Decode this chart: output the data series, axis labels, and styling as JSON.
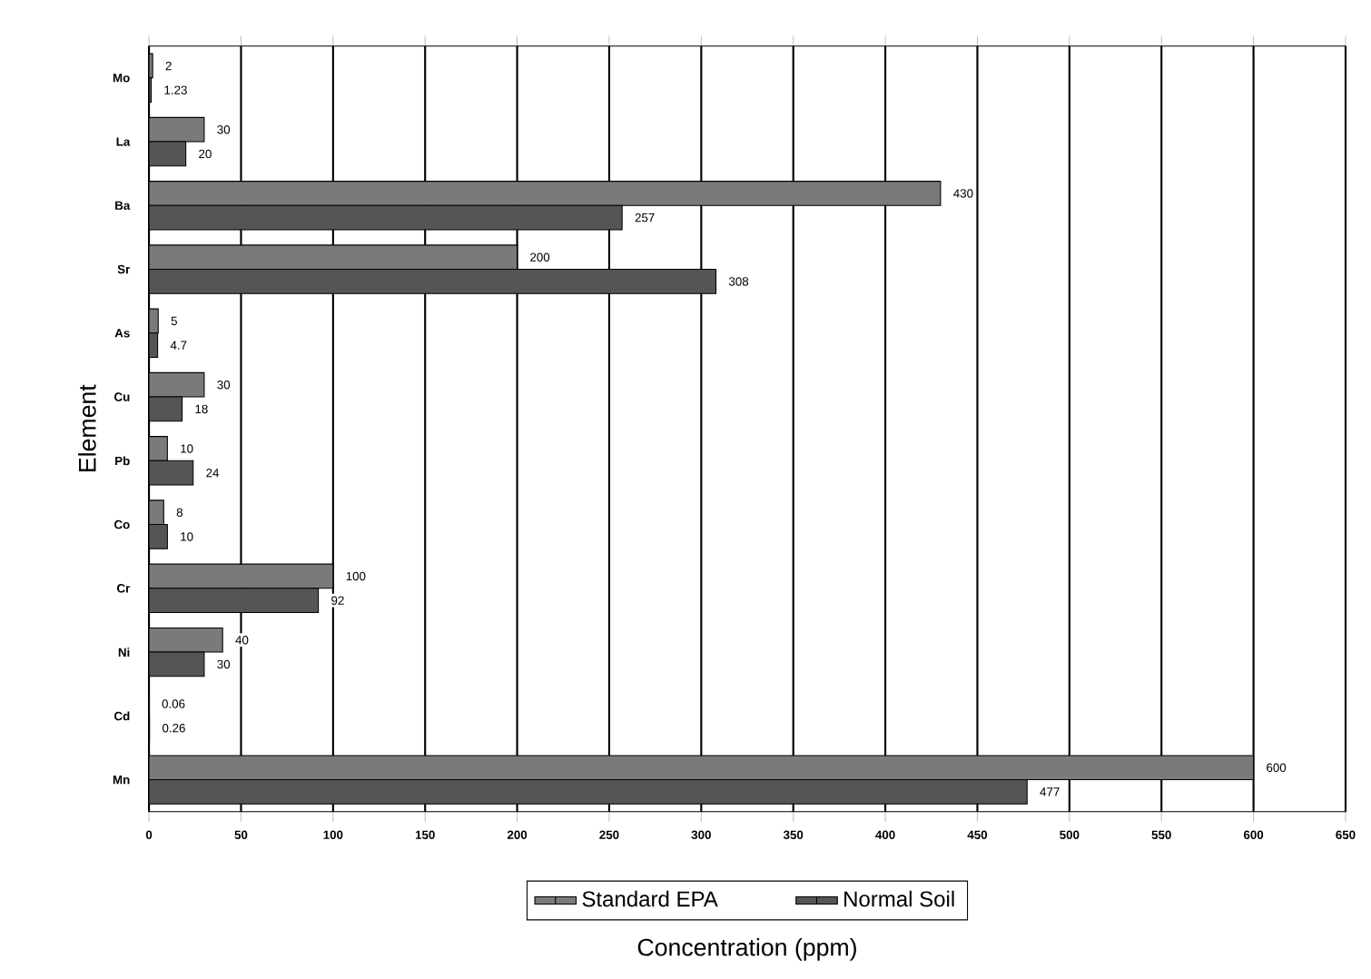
{
  "chart_data": {
    "type": "bar",
    "orientation": "horizontal",
    "xlabel": "Concentration (ppm)",
    "ylabel": "Element",
    "categories": [
      "Mo",
      "La",
      "Ba",
      "Sr",
      "As",
      "Cu",
      "Pb",
      "Co",
      "Cr",
      "Ni",
      "Cd",
      "Mn"
    ],
    "series": [
      {
        "name": "Standard EPA",
        "color": "#7a7a7a",
        "values": [
          2,
          30,
          430,
          200,
          5,
          30,
          10,
          8,
          100,
          40,
          0.06,
          600
        ]
      },
      {
        "name": "Normal Soil",
        "color": "#555555",
        "values": [
          1.23,
          20,
          257,
          308,
          4.7,
          18,
          24,
          10,
          92,
          30,
          0.26,
          477
        ]
      }
    ],
    "xlim": [
      0,
      650
    ],
    "xticks": [
      0,
      50,
      100,
      150,
      200,
      250,
      300,
      350,
      400,
      450,
      500,
      550,
      600,
      650
    ],
    "grid": "x",
    "legend": "bottom",
    "data_labels": true
  }
}
